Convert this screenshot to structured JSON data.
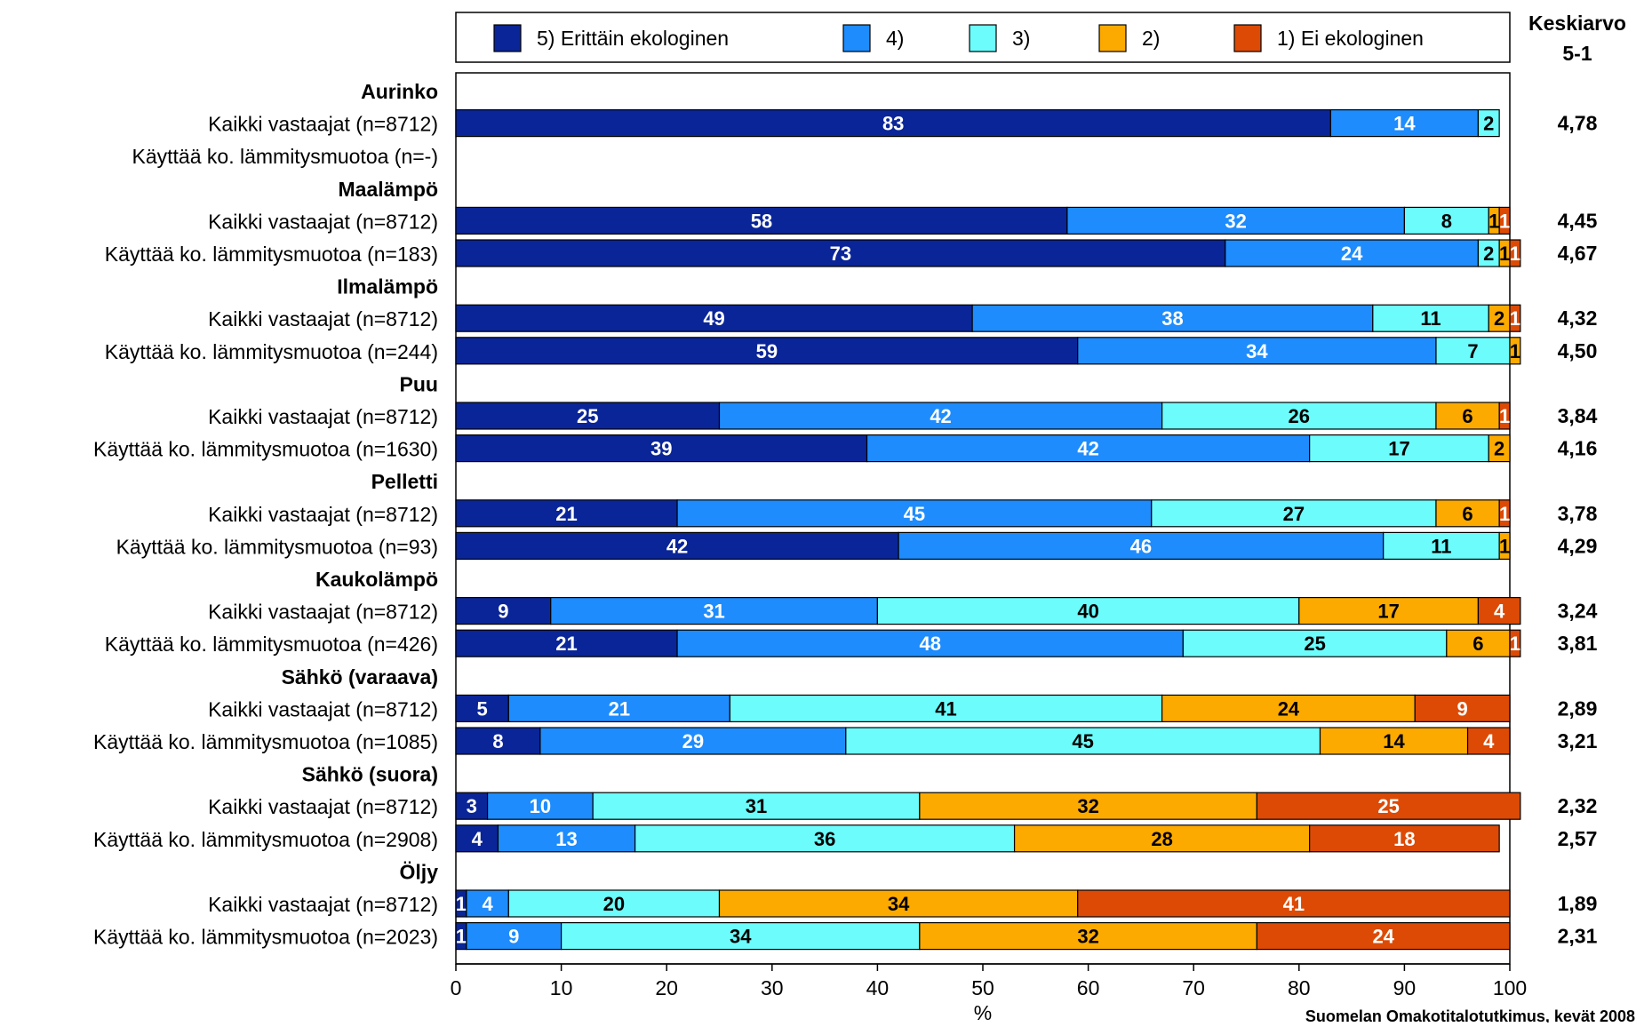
{
  "chart_data": {
    "type": "bar",
    "orientation": "horizontal",
    "stacked": true,
    "xlabel": "%",
    "xlim": [
      0,
      100
    ],
    "xticks": [
      0,
      10,
      20,
      30,
      40,
      50,
      60,
      70,
      80,
      90,
      100
    ],
    "legend_position": "top",
    "series": [
      {
        "name": "5) Erittäin ekologinen",
        "color": "#0a2597",
        "label_color": "#ffffff"
      },
      {
        "name": "4)",
        "color": "#1e8cfc",
        "label_color": "#ffffff"
      },
      {
        "name": "3)",
        "color": "#6cfcfc",
        "label_color": "#000000"
      },
      {
        "name": "2)",
        "color": "#fcaa00",
        "label_color": "#000000"
      },
      {
        "name": "1) Ei ekologinen",
        "color": "#dc4a05",
        "label_color": "#ffffff"
      }
    ],
    "average_header": [
      "Keskiarvo",
      "5-1"
    ],
    "groups": [
      {
        "name": "Aurinko",
        "rows": [
          {
            "label": "Kaikki vastaajat (n=8712)",
            "values": [
              83,
              14,
              2,
              0,
              0
            ],
            "average": "4,78"
          },
          {
            "label": "Käyttää ko. lämmitysmuotoa (n=-)",
            "values": null,
            "average": ""
          }
        ]
      },
      {
        "name": "Maalämpö",
        "rows": [
          {
            "label": "Kaikki vastaajat (n=8712)",
            "values": [
              58,
              32,
              8,
              1,
              1
            ],
            "average": "4,45"
          },
          {
            "label": "Käyttää ko. lämmitysmuotoa (n=183)",
            "values": [
              73,
              24,
              2,
              1,
              1
            ],
            "average": "4,67"
          }
        ]
      },
      {
        "name": "Ilmalämpö",
        "rows": [
          {
            "label": "Kaikki vastaajat (n=8712)",
            "values": [
              49,
              38,
              11,
              2,
              1
            ],
            "average": "4,32"
          },
          {
            "label": "Käyttää ko. lämmitysmuotoa (n=244)",
            "values": [
              59,
              34,
              7,
              1,
              0
            ],
            "average": "4,50"
          }
        ]
      },
      {
        "name": "Puu",
        "rows": [
          {
            "label": "Kaikki vastaajat (n=8712)",
            "values": [
              25,
              42,
              26,
              6,
              1
            ],
            "average": "3,84"
          },
          {
            "label": "Käyttää ko. lämmitysmuotoa (n=1630)",
            "values": [
              39,
              42,
              17,
              2,
              0
            ],
            "average": "4,16"
          }
        ]
      },
      {
        "name": "Pelletti",
        "rows": [
          {
            "label": "Kaikki vastaajat (n=8712)",
            "values": [
              21,
              45,
              27,
              6,
              1
            ],
            "average": "3,78"
          },
          {
            "label": "Käyttää ko. lämmitysmuotoa (n=93)",
            "values": [
              42,
              46,
              11,
              1,
              0
            ],
            "average": "4,29"
          }
        ]
      },
      {
        "name": "Kaukolämpö",
        "rows": [
          {
            "label": "Kaikki vastaajat (n=8712)",
            "values": [
              9,
              31,
              40,
              17,
              4
            ],
            "average": "3,24"
          },
          {
            "label": "Käyttää ko. lämmitysmuotoa (n=426)",
            "values": [
              21,
              48,
              25,
              6,
              1
            ],
            "average": "3,81"
          }
        ]
      },
      {
        "name": "Sähkö (varaava)",
        "rows": [
          {
            "label": "Kaikki vastaajat (n=8712)",
            "values": [
              5,
              21,
              41,
              24,
              9
            ],
            "average": "2,89"
          },
          {
            "label": "Käyttää ko. lämmitysmuotoa (n=1085)",
            "values": [
              8,
              29,
              45,
              14,
              4
            ],
            "average": "3,21"
          }
        ]
      },
      {
        "name": "Sähkö (suora)",
        "rows": [
          {
            "label": "Kaikki vastaajat (n=8712)",
            "values": [
              3,
              10,
              31,
              32,
              25
            ],
            "average": "2,32"
          },
          {
            "label": "Käyttää ko. lämmitysmuotoa (n=2908)",
            "values": [
              4,
              13,
              36,
              28,
              18
            ],
            "average": "2,57"
          }
        ]
      },
      {
        "name": "Öljy",
        "rows": [
          {
            "label": "Kaikki vastaajat (n=8712)",
            "values": [
              1,
              4,
              20,
              34,
              41
            ],
            "average": "1,89"
          },
          {
            "label": "Käyttää ko. lämmitysmuotoa (n=2023)",
            "values": [
              1,
              9,
              34,
              32,
              24
            ],
            "average": "2,31"
          }
        ]
      }
    ],
    "source": "Suomelan Omakotitalotutkimus, kevät 2008"
  }
}
